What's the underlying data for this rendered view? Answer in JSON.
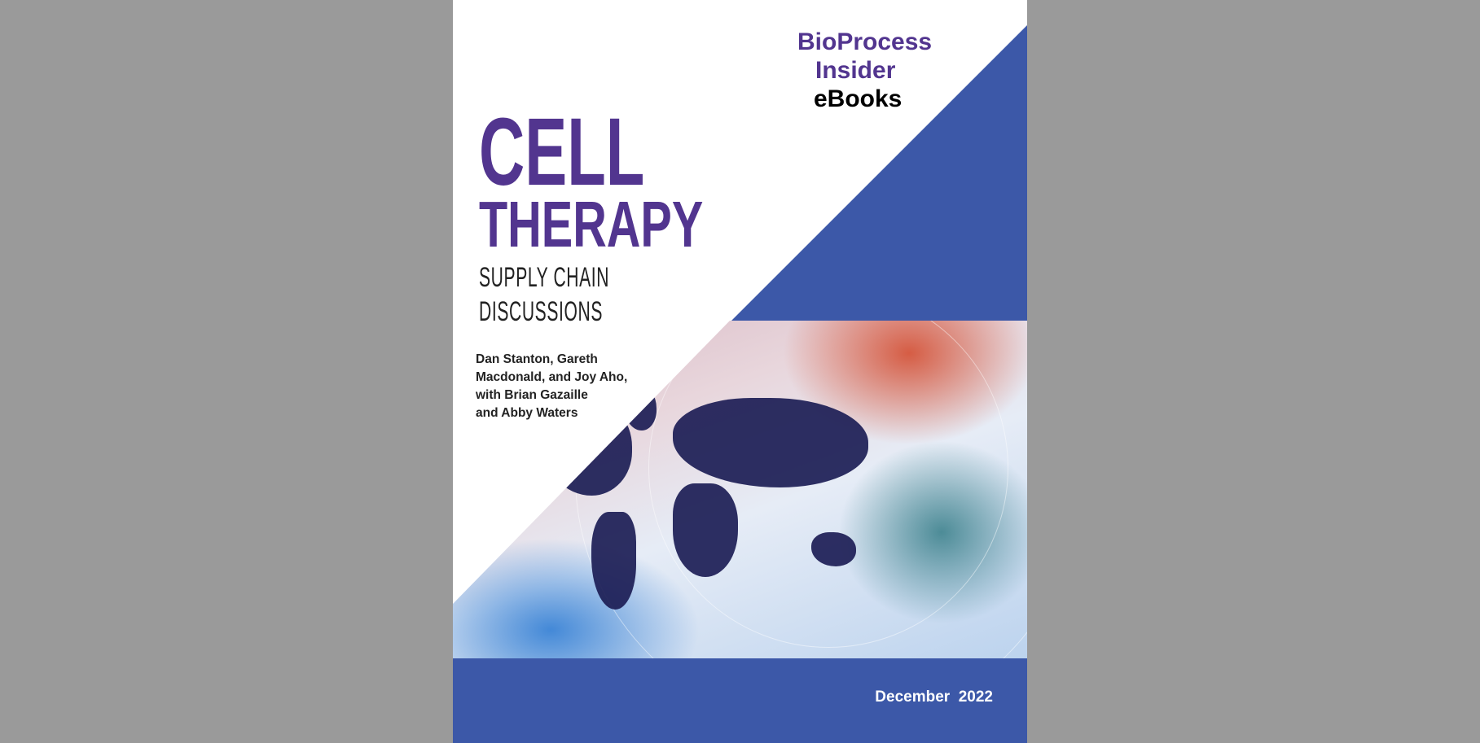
{
  "brand": {
    "line1": "BioProcess",
    "line2": "Insider",
    "line3": "eBooks"
  },
  "title": {
    "line1": "CELL",
    "line2": "THERAPY"
  },
  "subtitle": {
    "line1": "SUPPLY CHAIN",
    "line2": "DISCUSSIONS"
  },
  "authors": [
    "Dan Stanton, Gareth",
    "Macdonald, and Joy Aho,",
    "with Brian Gazaille",
    "and Abby Waters"
  ],
  "date": "December  2022",
  "colors": {
    "purple": "#52358f",
    "blue": "#3c58a8",
    "background": "#9a9a9a"
  }
}
